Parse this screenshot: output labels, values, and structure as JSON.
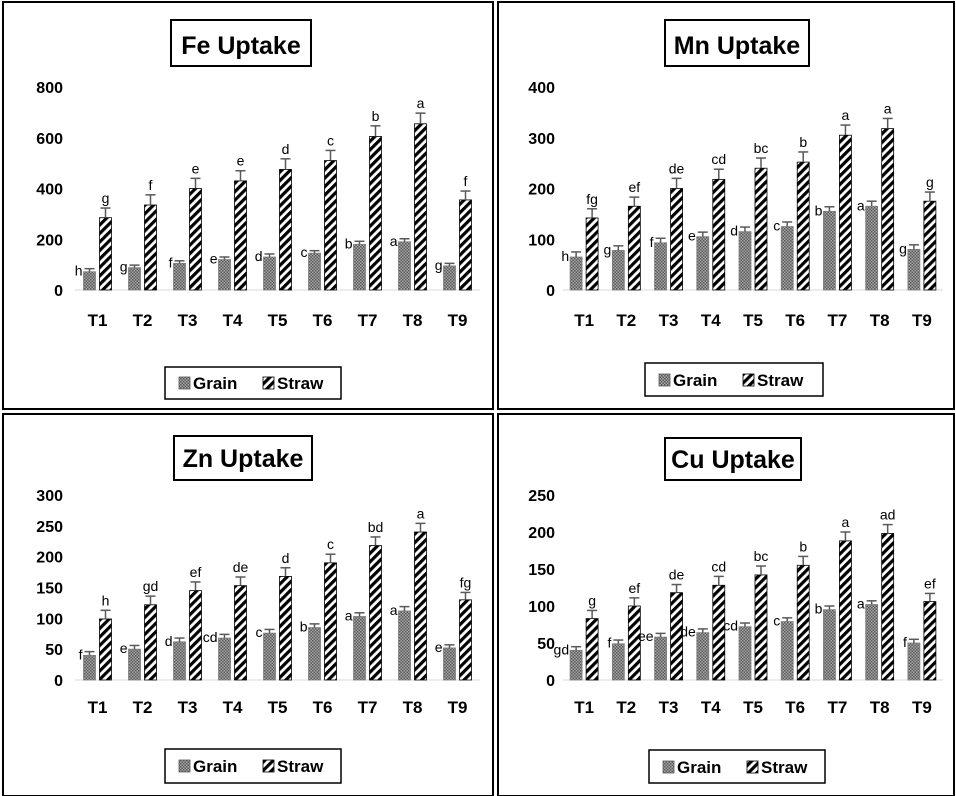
{
  "colors": {
    "grain_fill": "#8c8c8c",
    "straw_pattern": "#000000",
    "error_bar": "#595959",
    "axis": "#d9d9d9",
    "border": "#000000"
  },
  "legend": {
    "grain_label": "Grain",
    "straw_label": "Straw",
    "placement": "bottom"
  },
  "chart_data": [
    {
      "type": "bar",
      "title": "Fe Uptake",
      "categories": [
        "T1",
        "T2",
        "T3",
        "T4",
        "T5",
        "T6",
        "T7",
        "T8",
        "T9"
      ],
      "ylim": [
        0,
        800
      ],
      "yticks": [
        0,
        200,
        400,
        600,
        800
      ],
      "series": [
        {
          "name": "Grain",
          "values": [
            72,
            88,
            105,
            120,
            130,
            145,
            180,
            190,
            95
          ],
          "errors": [
            12,
            10,
            10,
            10,
            12,
            10,
            12,
            12,
            10
          ],
          "letters": [
            "h",
            "g",
            "f",
            "e",
            "d",
            "c",
            "b",
            "a",
            "g"
          ]
        },
        {
          "name": "Straw",
          "values": [
            285,
            335,
            400,
            430,
            475,
            510,
            605,
            655,
            355
          ],
          "errors": [
            38,
            40,
            40,
            40,
            42,
            40,
            42,
            42,
            35
          ],
          "letters": [
            "g",
            "f",
            "e",
            "e",
            "d",
            "c",
            "b",
            "a",
            "f"
          ]
        }
      ]
    },
    {
      "type": "bar",
      "title": "Mn Uptake",
      "categories": [
        "T1",
        "T2",
        "T3",
        "T4",
        "T5",
        "T6",
        "T7",
        "T8",
        "T9"
      ],
      "ylim": [
        0,
        400
      ],
      "yticks": [
        0,
        100,
        200,
        300,
        400
      ],
      "series": [
        {
          "name": "Grain",
          "values": [
            65,
            78,
            93,
            105,
            115,
            125,
            155,
            165,
            80
          ],
          "errors": [
            10,
            9,
            9,
            9,
            9,
            9,
            9,
            10,
            9
          ],
          "letters": [
            "h",
            "g",
            "f",
            "e",
            "d",
            "c",
            "b",
            "a",
            "g"
          ]
        },
        {
          "name": "Straw",
          "values": [
            142,
            165,
            200,
            218,
            240,
            252,
            305,
            318,
            175
          ],
          "errors": [
            18,
            18,
            20,
            20,
            20,
            20,
            20,
            20,
            18
          ],
          "letters": [
            "fg",
            "ef",
            "de",
            "cd",
            "bc",
            "b",
            "a",
            "a",
            "g"
          ]
        }
      ]
    },
    {
      "type": "bar",
      "title": "Zn Uptake",
      "categories": [
        "T1",
        "T2",
        "T3",
        "T4",
        "T5",
        "T6",
        "T7",
        "T8",
        "T9"
      ],
      "ylim": [
        0,
        300
      ],
      "yticks": [
        0,
        50,
        100,
        150,
        200,
        250,
        300
      ],
      "series": [
        {
          "name": "Grain",
          "values": [
            40,
            50,
            62,
            68,
            76,
            85,
            103,
            112,
            52
          ],
          "errors": [
            6,
            6,
            6,
            6,
            6,
            6,
            6,
            7,
            5
          ],
          "letters": [
            "f",
            "e",
            "d",
            "cd",
            "c",
            "b",
            "a",
            "a",
            "e"
          ]
        },
        {
          "name": "Straw",
          "values": [
            99,
            122,
            145,
            153,
            168,
            190,
            218,
            240,
            130
          ],
          "errors": [
            14,
            14,
            14,
            14,
            14,
            14,
            14,
            14,
            12
          ],
          "letters": [
            "h",
            "gd",
            "ef",
            "de",
            "d",
            "c",
            "bd",
            "a",
            "fg"
          ]
        }
      ]
    },
    {
      "type": "bar",
      "title": "Cu Uptake",
      "categories": [
        "T1",
        "T2",
        "T3",
        "T4",
        "T5",
        "T6",
        "T7",
        "T8",
        "T9"
      ],
      "ylim": [
        0,
        250
      ],
      "yticks": [
        0,
        50,
        100,
        150,
        200,
        250
      ],
      "series": [
        {
          "name": "Grain",
          "values": [
            40,
            49,
            58,
            64,
            72,
            79,
            95,
            102,
            50
          ],
          "errors": [
            5,
            5,
            5,
            5,
            5,
            5,
            5,
            5,
            5
          ],
          "letters": [
            "gd",
            "f",
            "ee",
            "de",
            "cd",
            "c",
            "b",
            "a",
            "f"
          ]
        },
        {
          "name": "Straw",
          "values": [
            83,
            100,
            118,
            128,
            142,
            155,
            188,
            198,
            106
          ],
          "errors": [
            11,
            11,
            11,
            12,
            12,
            12,
            12,
            12,
            11
          ],
          "letters": [
            "g",
            "ef",
            "de",
            "cd",
            "bc",
            "b",
            "a",
            "ad",
            "ef"
          ]
        }
      ]
    }
  ]
}
